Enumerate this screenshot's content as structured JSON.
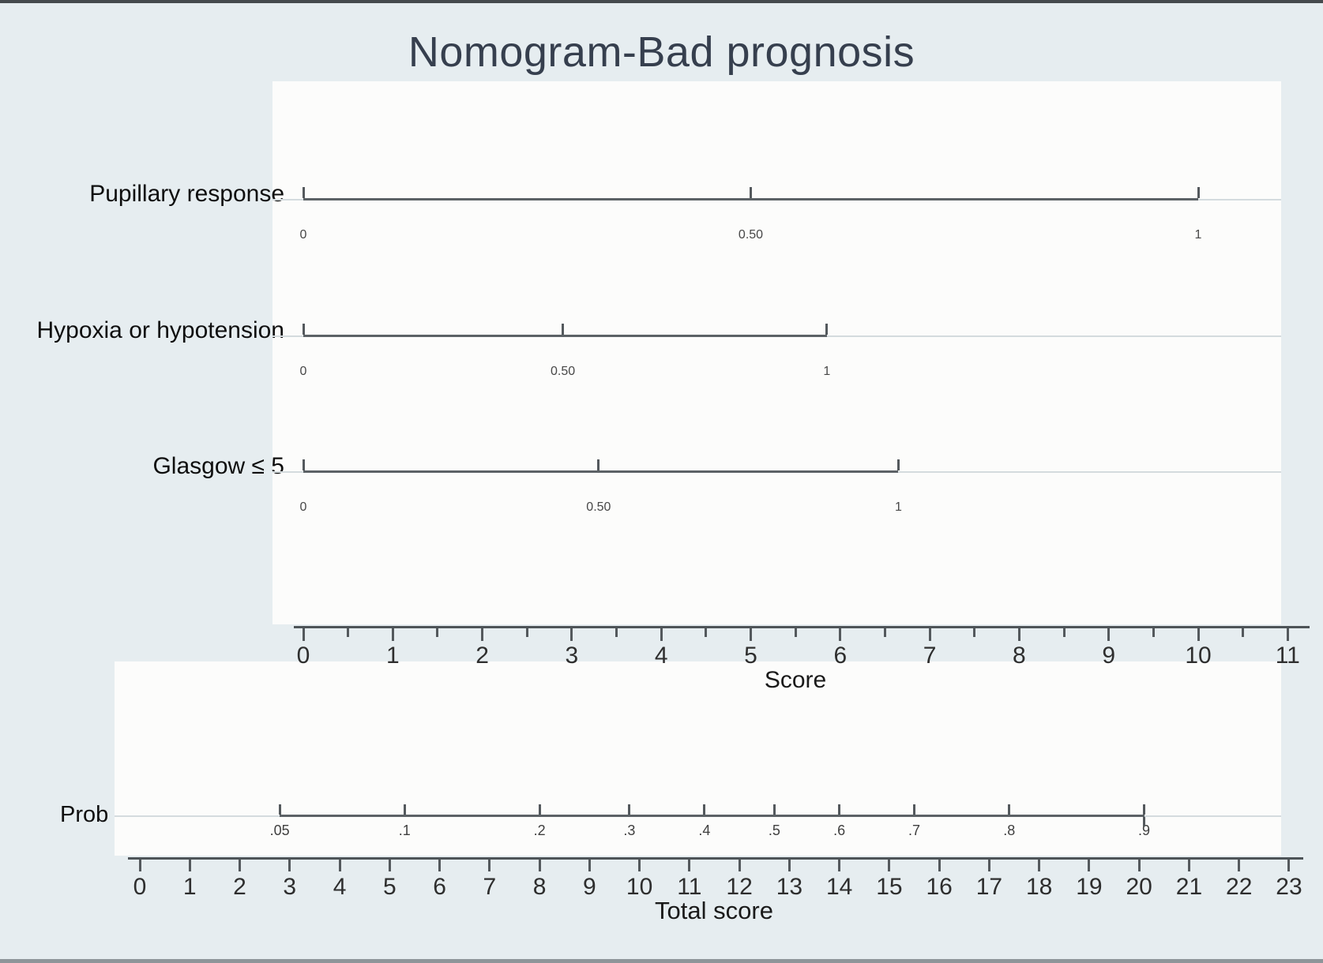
{
  "title": "Nomogram-Bad prognosis",
  "colors": {
    "background": "#e6edf0",
    "plot_background": "#fcfcfb",
    "title_text": "#363f4e",
    "line": "#5c6266",
    "tick": "#54595d",
    "pale_line": "#d4dbde",
    "axis_number_text": "#2e2e2e",
    "value_label_text": "#474747",
    "label_text": "#0e0e0e"
  },
  "chart_data": {
    "type": "nomogram",
    "title": "Nomogram-Bad prognosis",
    "score_axis": {
      "label": "Score",
      "min": 0,
      "max": 11,
      "major_tick_step": 1,
      "minor_tick_step": 0.5,
      "tick_labels": [
        "0",
        "1",
        "2",
        "3",
        "4",
        "5",
        "6",
        "7",
        "8",
        "9",
        "10",
        "11"
      ]
    },
    "variables": [
      {
        "label": "Pupillary response",
        "ticks": [
          {
            "label": "0",
            "score": 0
          },
          {
            "label": "0.50",
            "score": 5
          },
          {
            "label": "1",
            "score": 10
          }
        ]
      },
      {
        "label": "Hypoxia or hypotension",
        "ticks": [
          {
            "label": "0",
            "score": 0
          },
          {
            "label": "0.50",
            "score": 2.9
          },
          {
            "label": "1",
            "score": 5.85
          }
        ]
      },
      {
        "label": "Glasgow ≤ 5",
        "ticks": [
          {
            "label": "0",
            "score": 0
          },
          {
            "label": "0.50",
            "score": 3.3
          },
          {
            "label": "1",
            "score": 6.65
          }
        ]
      }
    ],
    "probability_axis": {
      "label": "Prob",
      "scale": "logit",
      "ticks": [
        {
          "label": ".05",
          "total_score": 2.8
        },
        {
          "label": ".1",
          "total_score": 5.3
        },
        {
          "label": ".2",
          "total_score": 8.0
        },
        {
          "label": ".3",
          "total_score": 9.8
        },
        {
          "label": ".4",
          "total_score": 11.3
        },
        {
          "label": ".5",
          "total_score": 12.7
        },
        {
          "label": ".6",
          "total_score": 14.0
        },
        {
          "label": ".7",
          "total_score": 15.5
        },
        {
          "label": ".8",
          "total_score": 17.4
        },
        {
          "label": ".9",
          "total_score": 20.1
        }
      ]
    },
    "total_score_axis": {
      "label": "Total score",
      "min": 0,
      "max": 23,
      "major_tick_step": 1,
      "tick_labels": [
        "0",
        "1",
        "2",
        "3",
        "4",
        "5",
        "6",
        "7",
        "8",
        "9",
        "10",
        "11",
        "12",
        "13",
        "14",
        "15",
        "16",
        "17",
        "18",
        "19",
        "20",
        "21",
        "22",
        "23"
      ]
    }
  }
}
